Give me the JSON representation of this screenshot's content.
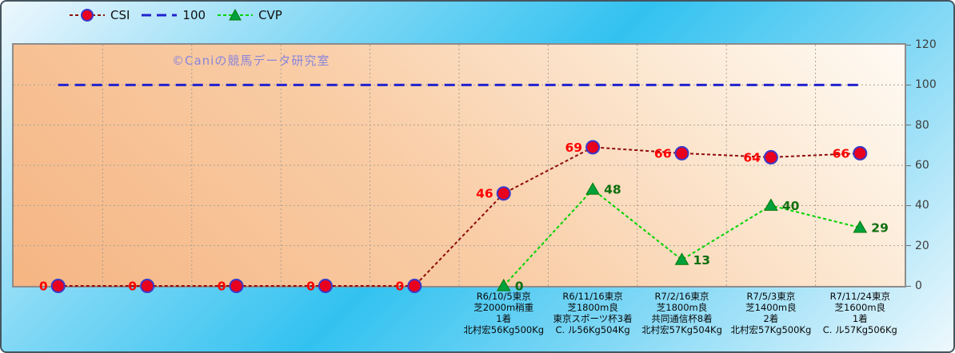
{
  "legend": {
    "items": [
      {
        "label": "CSI"
      },
      {
        "label": "100"
      },
      {
        "label": "CVP"
      }
    ]
  },
  "watermark": {
    "text": "©Caniの競馬データ研究室",
    "color": "#7f7de2"
  },
  "colors": {
    "outer_background_mid": "#32c2f0",
    "outer_background_edge": "#eef7fd",
    "plot_background_dark": "#f5b583",
    "plot_background_light": "#fefaf4",
    "gridline": "#a9a195",
    "plot_border": "#8c8c8c",
    "axis_text": "#3d3d3d"
  },
  "chart_data": {
    "type": "line",
    "title": "",
    "xlabel": "",
    "ylabel": "",
    "ylim": [
      0,
      120
    ],
    "y_ticks": [
      0,
      20,
      40,
      60,
      80,
      100,
      120
    ],
    "grid": true,
    "legend_position": "top-left",
    "categories": [
      "",
      "",
      "",
      "",
      "",
      "R6/10/5東京\n芝2000m稍重\n1着\n北村宏56Kg500Kg",
      "R6/11/16東京\n芝1800m良\n東京スポーツ杯3着\nC. ル56Kg504Kg",
      "R7/2/16東京\n芝1800m良\n共同通信杯8着\n北村宏57Kg504Kg",
      "R7/5/3東京\n芝1400m良\n2着\n北村宏57Kg500Kg",
      "R7/11/24東京\n芝1600m良\n1着\nC. ル57Kg506Kg"
    ],
    "series": [
      {
        "name": "CSI",
        "values": [
          0,
          0,
          0,
          0,
          0,
          46,
          69,
          66,
          64,
          66
        ],
        "line_color": "#8f0b0b",
        "line_dash": "4 3",
        "line_width": 2,
        "marker": "circle",
        "marker_fill": "#e8001e",
        "marker_stroke": "#3a3ac9",
        "label_color": "#ff0000",
        "label_side": "left"
      },
      {
        "name": "100",
        "values": [
          100,
          100,
          100,
          100,
          100,
          100,
          100,
          100,
          100,
          100
        ],
        "line_color": "#2222cf",
        "line_dash": "13 8",
        "line_width": 3,
        "marker": "none"
      },
      {
        "name": "CVP",
        "values": [
          null,
          null,
          null,
          null,
          null,
          0,
          48,
          13,
          40,
          29
        ],
        "line_color": "#00d400",
        "line_dash": "4 3",
        "line_width": 2,
        "marker": "triangle",
        "marker_fill": "#00a13c",
        "marker_stroke": "#057a05",
        "label_color": "#0e6e0e",
        "label_side": "right"
      }
    ]
  }
}
